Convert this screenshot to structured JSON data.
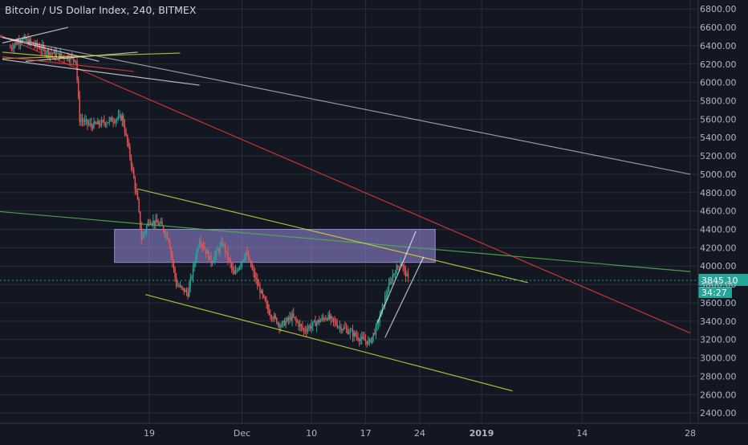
{
  "chart_data": {
    "type": "candlestick",
    "title": "Bitcoin / US Dollar Index, 240, BITMEX",
    "ylim": [
      2300,
      6900
    ],
    "y_ticks": [
      2400,
      2600,
      2800,
      3000,
      3200,
      3400,
      3600,
      3800,
      4000,
      4200,
      4400,
      4600,
      4800,
      5000,
      5200,
      5400,
      5600,
      5800,
      6000,
      6200,
      6400,
      6600,
      6800
    ],
    "x_ticks": [
      {
        "label": "19",
        "day": 19
      },
      {
        "label": "Dec",
        "day": 31
      },
      {
        "label": "10",
        "day": 40
      },
      {
        "label": "17",
        "day": 47
      },
      {
        "label": "24",
        "day": 54
      },
      {
        "label": "2019",
        "day": 62
      },
      {
        "label": "14",
        "day": 75
      },
      {
        "label": "28",
        "day": 89
      }
    ],
    "current_price": {
      "value": "3845.10",
      "countdown": "34:27"
    },
    "price_path": [
      [
        1.0,
        6380
      ],
      [
        2.5,
        6480
      ],
      [
        4.0,
        6420
      ],
      [
        5.5,
        6350
      ],
      [
        7.0,
        6300
      ],
      [
        8.5,
        6280
      ],
      [
        9.5,
        6250
      ],
      [
        10.0,
        5600
      ],
      [
        11.5,
        5530
      ],
      [
        13.0,
        5560
      ],
      [
        14.5,
        5600
      ],
      [
        15.5,
        5620
      ],
      [
        16.5,
        5200
      ],
      [
        17.5,
        4700
      ],
      [
        18.0,
        4300
      ],
      [
        19.0,
        4500
      ],
      [
        20.5,
        4450
      ],
      [
        21.5,
        4300
      ],
      [
        22.5,
        3800
      ],
      [
        24.0,
        3700
      ],
      [
        25.5,
        4300
      ],
      [
        27.0,
        4050
      ],
      [
        28.5,
        4250
      ],
      [
        30.0,
        3900
      ],
      [
        31.5,
        4150
      ],
      [
        33.0,
        3800
      ],
      [
        34.5,
        3500
      ],
      [
        36.0,
        3350
      ],
      [
        37.5,
        3450
      ],
      [
        39.0,
        3300
      ],
      [
        40.5,
        3380
      ],
      [
        42.0,
        3450
      ],
      [
        43.5,
        3350
      ],
      [
        45.0,
        3280
      ],
      [
        46.5,
        3200
      ],
      [
        47.5,
        3170
      ],
      [
        48.5,
        3350
      ],
      [
        49.5,
        3650
      ],
      [
        50.5,
        3900
      ],
      [
        51.5,
        4050
      ],
      [
        52.5,
        3850
      ]
    ],
    "zone": {
      "day_start": 14.5,
      "day_end": 56,
      "low": 4040,
      "high": 4400,
      "color": "#9c8ee0"
    },
    "trendlines": [
      {
        "color": "#ffffff",
        "opacity": 0.55,
        "x1": -4,
        "y1": 6560,
        "x2": 89,
        "y2": 5000
      },
      {
        "color": "#e53935",
        "opacity": 0.85,
        "x1": -4,
        "y1": 6650,
        "x2": 89,
        "y2": 3270
      },
      {
        "color": "#4caf50",
        "opacity": 0.9,
        "x1": -4,
        "y1": 4620,
        "x2": 89,
        "y2": 3940
      },
      {
        "color": "#d4d43a",
        "opacity": 0.85,
        "x1": 17.5,
        "y1": 4840,
        "x2": 68,
        "y2": 3820
      },
      {
        "color": "#d4d43a",
        "opacity": 0.85,
        "x1": 18.5,
        "y1": 3690,
        "x2": 66,
        "y2": 2640
      },
      {
        "color": "#ffffff",
        "opacity": 0.7,
        "x1": 48.5,
        "y1": 3380,
        "x2": 53.5,
        "y2": 4380
      },
      {
        "color": "#ffffff",
        "opacity": 0.7,
        "x1": 49.5,
        "y1": 3220,
        "x2": 54.5,
        "y2": 4100
      },
      {
        "color": "#ffffff",
        "opacity": 0.7,
        "x1": 0,
        "y1": 6250,
        "x2": 25.5,
        "y2": 5970
      },
      {
        "color": "#ffffff",
        "opacity": 0.7,
        "x1": 0,
        "y1": 6430,
        "x2": 8.5,
        "y2": 6600
      },
      {
        "color": "#ffffff",
        "opacity": 0.7,
        "x1": 0,
        "y1": 6490,
        "x2": 12.5,
        "y2": 6230
      },
      {
        "color": "#ffffff",
        "opacity": 0.7,
        "x1": 3,
        "y1": 6230,
        "x2": 17.5,
        "y2": 6330
      },
      {
        "color": "#d4d43a",
        "opacity": 0.85,
        "x1": 0,
        "y1": 6260,
        "x2": 23,
        "y2": 6320
      },
      {
        "color": "#d4d43a",
        "opacity": 0.85,
        "x1": 0,
        "y1": 6330,
        "x2": 8,
        "y2": 6270
      },
      {
        "color": "#e53935",
        "opacity": 0.85,
        "x1": 0,
        "y1": 6280,
        "x2": 17,
        "y2": 6120
      }
    ],
    "colors": {
      "background": "#131722",
      "grid": "#2a2e39",
      "axis_text": "#b2b5be",
      "title_text": "#d1d4dc",
      "up": "#26a69a",
      "down": "#ef5350",
      "price_tag": "#26a69a",
      "price_line": "#26a69a"
    },
    "grid": true
  }
}
